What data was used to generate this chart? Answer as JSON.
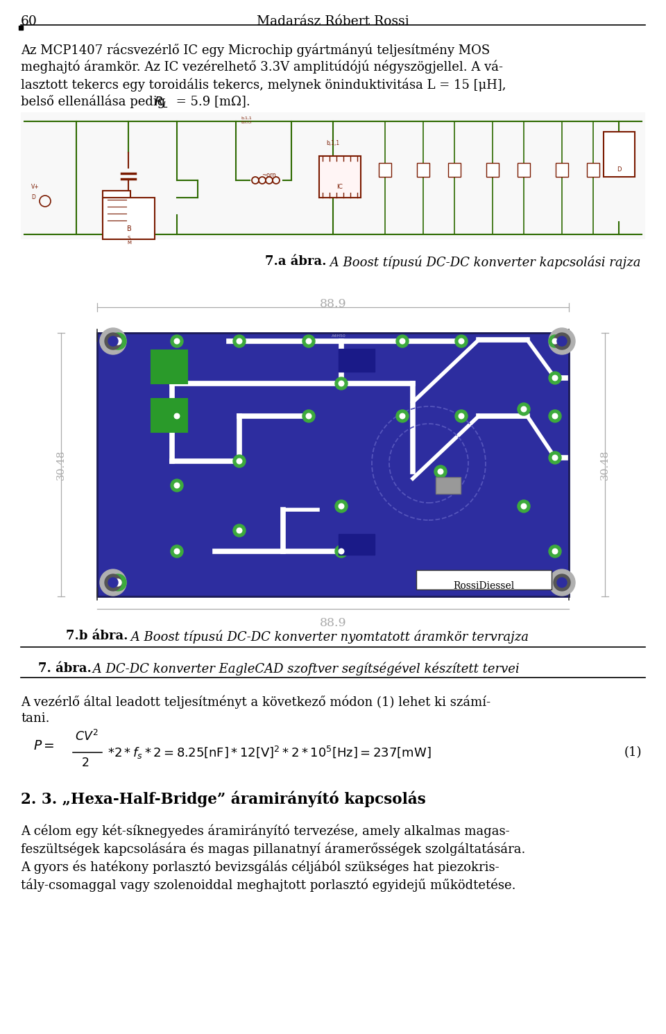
{
  "page_number": "60",
  "header_name": "Madarász Róbert Rossi",
  "bg_color": "#ffffff",
  "text_color": "#000000",
  "fig7a_label": "7.a ábra.",
  "fig7a_caption": " A Boost típusú DC-DC konverter kapcsolási rajza",
  "fig7b_label": "7.b ábra.",
  "fig7b_caption": " A Boost típusú DC-DC konverter nyomtatott áramkör tervrajza",
  "fig7_label": "7. ábra.",
  "fig7_caption": " A DC-DC konverter EagleCAD szoftver segítségével készített tervei",
  "para2_line1": "A vezérlő által leadott teljesítményt a következő módon (1) lehet ki számí-",
  "para2_line2": "tani.",
  "eq_number": "(1)",
  "section_title": "2. 3. „Hexa-Half-Bridge” áramirányító kapcsolás",
  "fig_width_label": "88.9",
  "fig_height_label": "30.48",
  "para1_l1": "Az MCP1407 rácsvezérlő IC egy Microchip gyártmányú teljesítmény MOS",
  "para1_l2": "meghajtó áramkör. Az IC vezérelhető 3.3V amplitúdójú négyszögjellel. A vá-",
  "para1_l3": "lasztott tekercs egy toroidális tekercs, melynek öninduktivitása L = 15 [μH],",
  "para1_l4a": "belső ellenállása pedig ",
  "para1_l4b": " = 5.9 [mΩ].",
  "para3_l1": "A célom egy két-síknegyedes áramirányító tervezése, amely alkalmas magas-",
  "para3_l2": "feszültségek kapcsolására és magas pillanatnyí áramerősségek szolgáltatására.",
  "para3_l3": "A gyors és hatékony porlasztó bevizsgálás céljából szükséges hat piezokris-",
  "para3_l4": "tály-csomaggal vagy szolenoiddal meghajtott porlasztó egyidejű működtetése."
}
